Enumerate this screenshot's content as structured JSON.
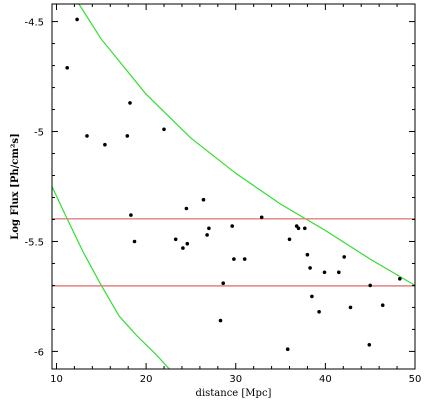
{
  "chart_data": {
    "type": "scatter",
    "title": "",
    "xlabel": "distance [Mpc]",
    "ylabel": "Log Flux [Ph/cm²s]",
    "xlim": [
      9.5,
      50
    ],
    "ylim": [
      -6.08,
      -4.42
    ],
    "x_ticks": [
      10,
      20,
      30,
      40,
      50
    ],
    "x_tick_labels": [
      "10",
      "20",
      "30",
      "40",
      "50"
    ],
    "y_ticks": [
      -4.5,
      -5,
      -5.5,
      -6
    ],
    "y_tick_labels": [
      "-4.5",
      "-5",
      "-5.5",
      "-6"
    ],
    "grid": false,
    "colors": {
      "points": "#000000",
      "curves": "#33dd33",
      "hlines": "#e08080",
      "frame": "#000000"
    },
    "points": [
      {
        "x": 11.2,
        "y": -4.71
      },
      {
        "x": 12.3,
        "y": -4.49
      },
      {
        "x": 13.4,
        "y": -5.02
      },
      {
        "x": 15.4,
        "y": -5.06
      },
      {
        "x": 17.9,
        "y": -5.02
      },
      {
        "x": 18.2,
        "y": -4.87
      },
      {
        "x": 18.3,
        "y": -5.38
      },
      {
        "x": 18.7,
        "y": -5.5
      },
      {
        "x": 22.0,
        "y": -4.99
      },
      {
        "x": 23.3,
        "y": -5.49
      },
      {
        "x": 24.1,
        "y": -5.53
      },
      {
        "x": 24.5,
        "y": -5.35
      },
      {
        "x": 24.6,
        "y": -5.51
      },
      {
        "x": 26.4,
        "y": -5.31
      },
      {
        "x": 26.8,
        "y": -5.47
      },
      {
        "x": 27.0,
        "y": -5.44
      },
      {
        "x": 28.3,
        "y": -5.86
      },
      {
        "x": 28.6,
        "y": -5.69
      },
      {
        "x": 29.6,
        "y": -5.43
      },
      {
        "x": 29.8,
        "y": -5.58
      },
      {
        "x": 31.0,
        "y": -5.58
      },
      {
        "x": 32.9,
        "y": -5.39
      },
      {
        "x": 35.8,
        "y": -5.99
      },
      {
        "x": 36.0,
        "y": -5.49
      },
      {
        "x": 36.8,
        "y": -5.43
      },
      {
        "x": 37.0,
        "y": -5.44
      },
      {
        "x": 37.7,
        "y": -5.44
      },
      {
        "x": 38.0,
        "y": -5.56
      },
      {
        "x": 38.3,
        "y": -5.62
      },
      {
        "x": 38.5,
        "y": -5.75
      },
      {
        "x": 39.3,
        "y": -5.82
      },
      {
        "x": 39.9,
        "y": -5.64
      },
      {
        "x": 41.5,
        "y": -5.64
      },
      {
        "x": 42.1,
        "y": -5.57
      },
      {
        "x": 42.8,
        "y": -5.8
      },
      {
        "x": 44.9,
        "y": -5.97
      },
      {
        "x": 45.0,
        "y": -5.7
      },
      {
        "x": 46.4,
        "y": -5.79
      },
      {
        "x": 48.3,
        "y": -5.67
      }
    ],
    "horizontal_lines": [
      -5.397,
      -5.702
    ],
    "curves": [
      {
        "points": [
          [
            12.5,
            -4.42
          ],
          [
            15,
            -4.58
          ],
          [
            20,
            -4.83
          ],
          [
            25,
            -5.03
          ],
          [
            30,
            -5.19
          ],
          [
            35,
            -5.33
          ],
          [
            40,
            -5.45
          ],
          [
            45,
            -5.58
          ],
          [
            50,
            -5.7
          ]
        ]
      },
      {
        "points": [
          [
            9.5,
            -5.25
          ],
          [
            11,
            -5.38
          ],
          [
            13,
            -5.55
          ],
          [
            15,
            -5.7
          ],
          [
            17,
            -5.84
          ],
          [
            19,
            -5.93
          ],
          [
            21,
            -6.01
          ],
          [
            22.6,
            -6.08
          ]
        ]
      }
    ]
  }
}
